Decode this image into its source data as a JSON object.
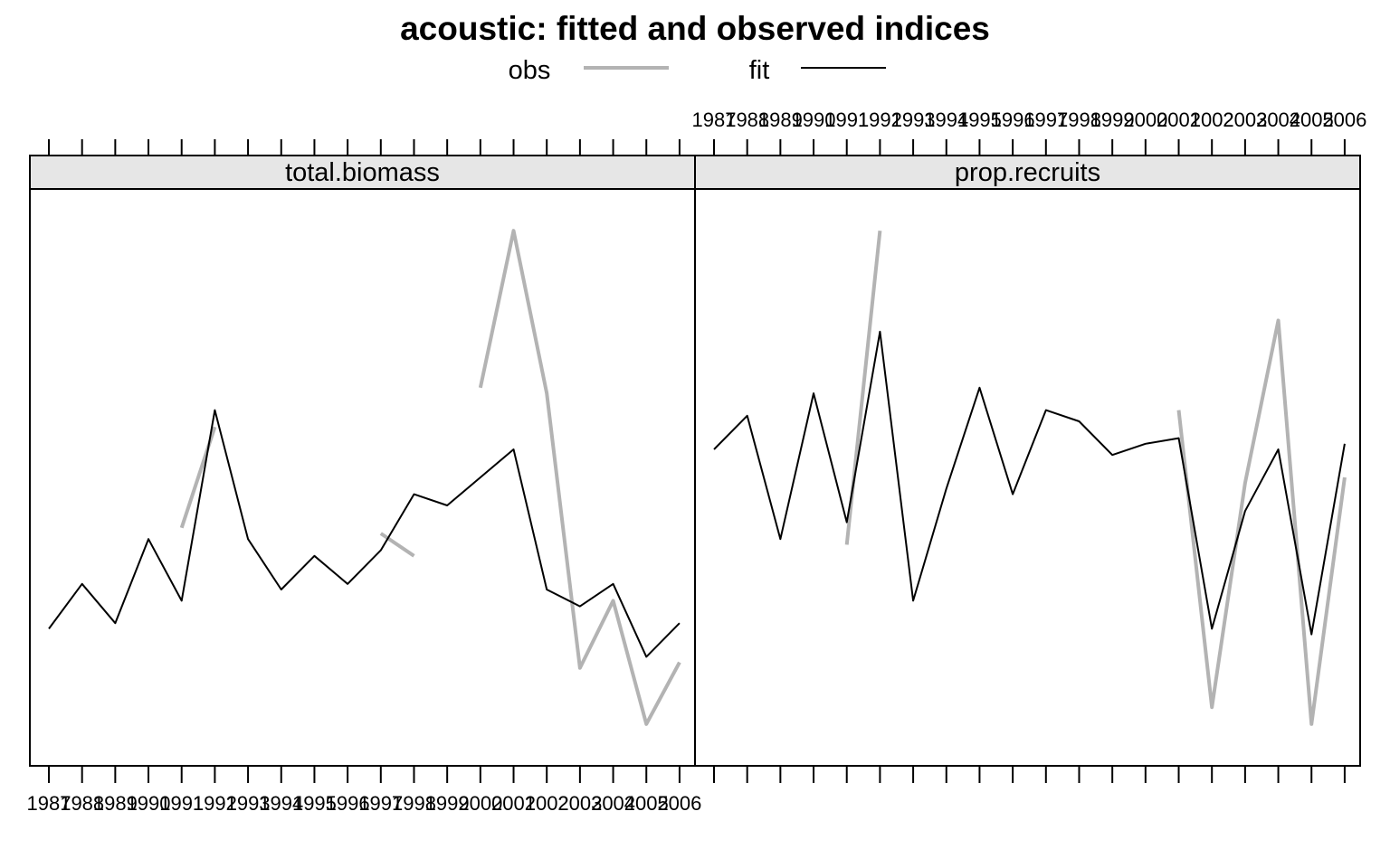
{
  "chart_data": {
    "type": "line",
    "title": "acoustic: fitted and observed indices",
    "legend": {
      "placement": "top",
      "entries": [
        {
          "label": "obs",
          "color": "#b3b3b3"
        },
        {
          "label": "fit",
          "color": "#000000"
        }
      ]
    },
    "x": [
      "1987",
      "1988",
      "1989",
      "1990",
      "1991",
      "1992",
      "1993",
      "1994",
      "1995",
      "1996",
      "1997",
      "1998",
      "1999",
      "2000",
      "2001",
      "2002",
      "2003",
      "2004",
      "2005",
      "2006"
    ],
    "ylim": [
      0,
      100
    ],
    "grid": false,
    "panels": [
      {
        "strip": "total.biomass",
        "obs": [
          null,
          null,
          null,
          null,
          41,
          59,
          null,
          null,
          null,
          null,
          40,
          36,
          null,
          66,
          94,
          65,
          16,
          28,
          6,
          17
        ],
        "fit": [
          23,
          31,
          24,
          39,
          28,
          62,
          39,
          30,
          36,
          31,
          37,
          47,
          45,
          50,
          55,
          30,
          27,
          31,
          18,
          24
        ]
      },
      {
        "strip": "prop.recruits",
        "obs": [
          null,
          null,
          null,
          null,
          38,
          94,
          null,
          null,
          null,
          null,
          null,
          null,
          null,
          null,
          62,
          9,
          49,
          78,
          6,
          50
        ],
        "fit": [
          55,
          61,
          39,
          65,
          42,
          76,
          28,
          48,
          66,
          47,
          62,
          60,
          54,
          56,
          57,
          23,
          44,
          55,
          22,
          56
        ]
      }
    ]
  }
}
